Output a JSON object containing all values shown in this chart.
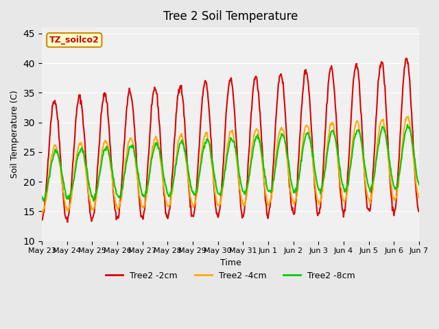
{
  "title": "Tree 2 Soil Temperature",
  "xlabel": "Time",
  "ylabel": "Soil Temperature (C)",
  "ylim": [
    10,
    46
  ],
  "yticks": [
    10,
    15,
    20,
    25,
    30,
    35,
    40,
    45
  ],
  "bg_color": "#e8e8e8",
  "plot_bg": "#f0f0f0",
  "legend_label": "TZ_soilco2",
  "series": {
    "Tree2 -2cm": {
      "color": "#dd0000",
      "lw": 1.5
    },
    "Tree2 -4cm": {
      "color": "#ffaa00",
      "lw": 1.5
    },
    "Tree2 -8cm": {
      "color": "#00cc00",
      "lw": 1.5
    }
  },
  "x_tick_labels": [
    "May 23",
    "May 24",
    "May 25",
    "May 26",
    "May 27",
    "May 28",
    "May 29",
    "May 30",
    "May 31",
    "Jun 1",
    "Jun 2",
    "Jun 3",
    "Jun 4",
    "Jun 5",
    "Jun 6",
    "Jun 7"
  ],
  "num_days": 15,
  "pts_per_day": 48
}
